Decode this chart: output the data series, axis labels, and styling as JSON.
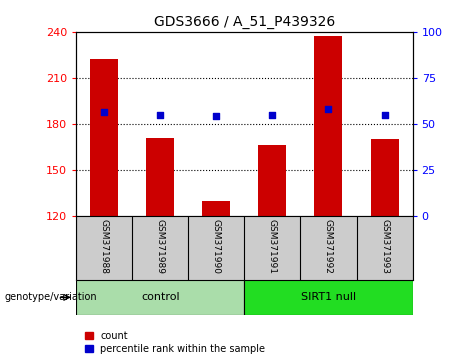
{
  "title": "GDS3666 / A_51_P439326",
  "samples": [
    "GSM371988",
    "GSM371989",
    "GSM371990",
    "GSM371991",
    "GSM371992",
    "GSM371993"
  ],
  "counts": [
    222,
    171,
    130,
    166,
    237,
    170
  ],
  "percentile_ranks": [
    188,
    186,
    185,
    186,
    190,
    186
  ],
  "groups": [
    {
      "label": "control",
      "indices": [
        0,
        1,
        2
      ],
      "color": "#aaddaa"
    },
    {
      "label": "SIRT1 null",
      "indices": [
        3,
        4,
        5
      ],
      "color": "#22dd22"
    }
  ],
  "ylim_left": [
    120,
    240
  ],
  "ylim_right": [
    0,
    100
  ],
  "yticks_left": [
    120,
    150,
    180,
    210,
    240
  ],
  "yticks_right": [
    0,
    25,
    50,
    75,
    100
  ],
  "bar_color": "#cc0000",
  "dot_color": "#0000cc",
  "bg_color": "#ffffff",
  "sample_area_color": "#cccccc",
  "label_count": "count",
  "label_pct": "percentile rank within the sample",
  "genotype_label": "genotype/variation"
}
